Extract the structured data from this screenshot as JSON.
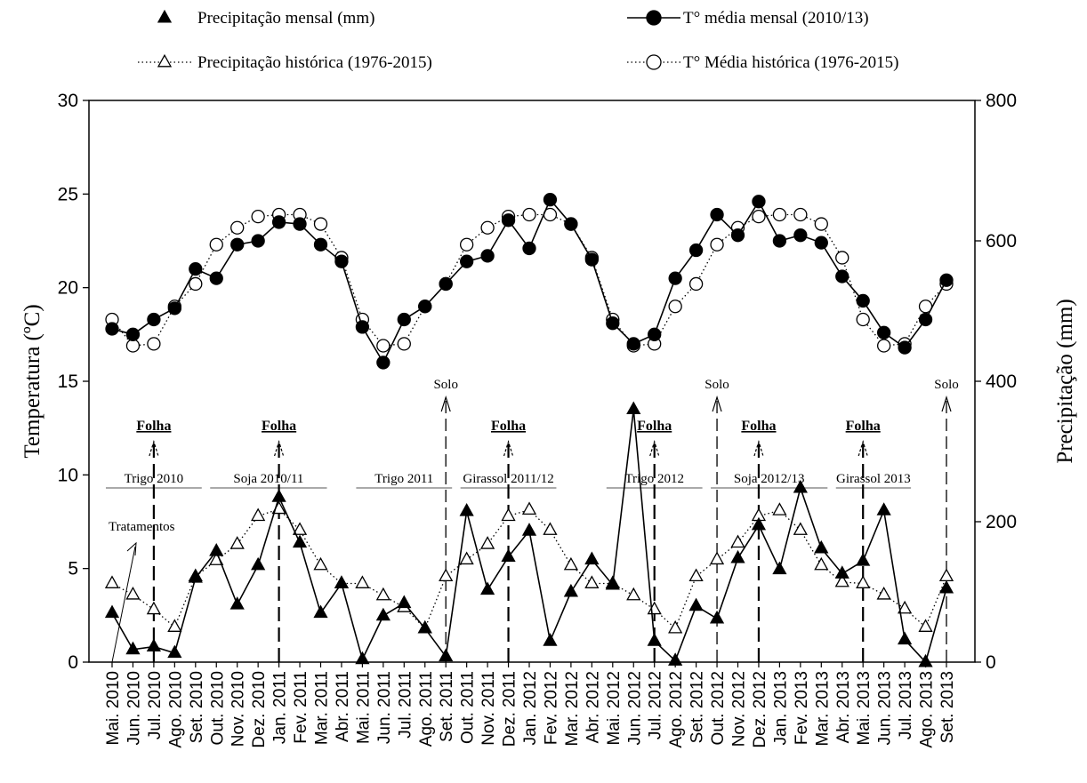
{
  "chart_data": {
    "type": "line",
    "x_categories": [
      "Mai. 2010",
      "Jun. 2010",
      "Jul. 2010",
      "Ago. 2010",
      "Set. 2010",
      "Out. 2010",
      "Nov. 2010",
      "Dez. 2010",
      "Jan. 2011",
      "Fev. 2011",
      "Mar. 2011",
      "Abr. 2011",
      "Mai. 2011",
      "Jun. 2011",
      "Jul. 2011",
      "Ago. 2011",
      "Set. 2011",
      "Out. 2011",
      "Nov. 2011",
      "Dez. 2011",
      "Jan. 2012",
      "Fev. 2012",
      "Mar. 2012",
      "Abr. 2012",
      "Mai. 2012",
      "Jun. 2012",
      "Jul. 2012",
      "Ago. 2012",
      "Set. 2012",
      "Out. 2012",
      "Nov. 2012",
      "Dez. 2012",
      "Jan. 2013",
      "Fev. 2013",
      "Mar. 2013",
      "Abr. 2013",
      "Mai. 2013",
      "Jun. 2013",
      "Jul. 2013",
      "Ago. 2013",
      "Set. 2013"
    ],
    "y_left": {
      "label": "Temperatura (ºC)",
      "lim": [
        0,
        30
      ],
      "ticks": [
        "0",
        "5",
        "10",
        "15",
        "20",
        "25",
        "30"
      ]
    },
    "y_right": {
      "label": "Precipitação (mm)",
      "lim": [
        0,
        800
      ],
      "ticks": [
        "0",
        "200",
        "400",
        "600",
        "800"
      ]
    },
    "series": [
      {
        "name": "Precipitação mensal (mm)",
        "axis": "right",
        "marker": "triangle-filled",
        "line": "solid",
        "values": [
          70,
          18,
          22,
          13,
          120,
          158,
          82,
          138,
          235,
          170,
          70,
          112,
          4,
          66,
          84,
          48,
          8,
          215,
          103,
          150,
          187,
          30,
          100,
          146,
          110,
          360,
          30,
          2,
          80,
          62,
          148,
          195,
          132,
          248,
          162,
          126,
          144,
          216,
          32,
          0,
          105
        ]
      },
      {
        "name": "Precipitação histórica (1976-2015)",
        "axis": "right",
        "marker": "triangle-open",
        "line": "dotted",
        "values": [
          112,
          96,
          75,
          50,
          122,
          145,
          168,
          208,
          218,
          188,
          138,
          112,
          112,
          95,
          78,
          48,
          122,
          146,
          168,
          208,
          217,
          188,
          138,
          112,
          112,
          95,
          75,
          48,
          122,
          146,
          170,
          208,
          216,
          188,
          138,
          114,
          112,
          96,
          76,
          50,
          122
        ]
      },
      {
        "name": "T° média mensal (2010/13)",
        "axis": "left",
        "marker": "circle-filled",
        "line": "solid",
        "values": [
          17.8,
          17.5,
          18.3,
          18.9,
          21.0,
          20.5,
          22.3,
          22.5,
          23.5,
          23.4,
          22.3,
          21.4,
          17.9,
          16.0,
          18.3,
          19.0,
          20.2,
          21.4,
          21.7,
          23.6,
          22.1,
          24.7,
          23.4,
          21.5,
          18.1,
          17.0,
          17.5,
          20.5,
          22.0,
          23.9,
          22.8,
          24.6,
          22.5,
          22.8,
          22.4,
          20.6,
          19.3,
          17.6,
          16.8,
          18.3,
          20.4
        ]
      },
      {
        "name": "T° Média histórica (1976-2015)",
        "axis": "left",
        "marker": "circle-open",
        "line": "dotted",
        "values": [
          18.3,
          16.9,
          17.0,
          19.0,
          20.2,
          22.3,
          23.2,
          23.8,
          23.9,
          23.9,
          23.4,
          21.6,
          18.3,
          16.9,
          17.0,
          19.0,
          20.2,
          22.3,
          23.2,
          23.8,
          23.9,
          23.9,
          23.4,
          21.6,
          18.3,
          16.9,
          17.0,
          19.0,
          20.2,
          22.3,
          23.2,
          23.8,
          23.9,
          23.9,
          23.4,
          21.6,
          18.3,
          16.9,
          17.0,
          19.0,
          20.2
        ]
      }
    ],
    "legend": {
      "placement": "top",
      "columns": 2
    },
    "grid": false,
    "crop_periods": [
      {
        "label": "Trigo 2010",
        "start": 0,
        "end": 4
      },
      {
        "label": "Soja 2010/11",
        "start": 5,
        "end": 10
      },
      {
        "label": "Trigo 2011",
        "start": 12,
        "end": 16
      },
      {
        "label": "Girassol 2011/12",
        "start": 17,
        "end": 21
      },
      {
        "label": "Trigo 2012",
        "start": 24,
        "end": 28
      },
      {
        "label": "Soja 2012/13",
        "start": 29,
        "end": 34
      },
      {
        "label": "Girassol 2013",
        "start": 35,
        "end": 38
      }
    ],
    "sampling_markers": [
      {
        "label": "Folha",
        "index": 2,
        "emphasis": true
      },
      {
        "label": "Folha",
        "index": 8,
        "emphasis": true
      },
      {
        "label": "Solo",
        "index": 16,
        "emphasis": false
      },
      {
        "label": "Folha",
        "index": 19,
        "emphasis": true
      },
      {
        "label": "Folha",
        "index": 26,
        "emphasis": true
      },
      {
        "label": "Solo",
        "index": 29,
        "emphasis": false
      },
      {
        "label": "Folha",
        "index": 31,
        "emphasis": true
      },
      {
        "label": "Folha",
        "index": 36,
        "emphasis": true
      },
      {
        "label": "Solo",
        "index": 40,
        "emphasis": false
      }
    ],
    "annotations": [
      {
        "label": "Tratamentos",
        "index": 0
      }
    ]
  }
}
